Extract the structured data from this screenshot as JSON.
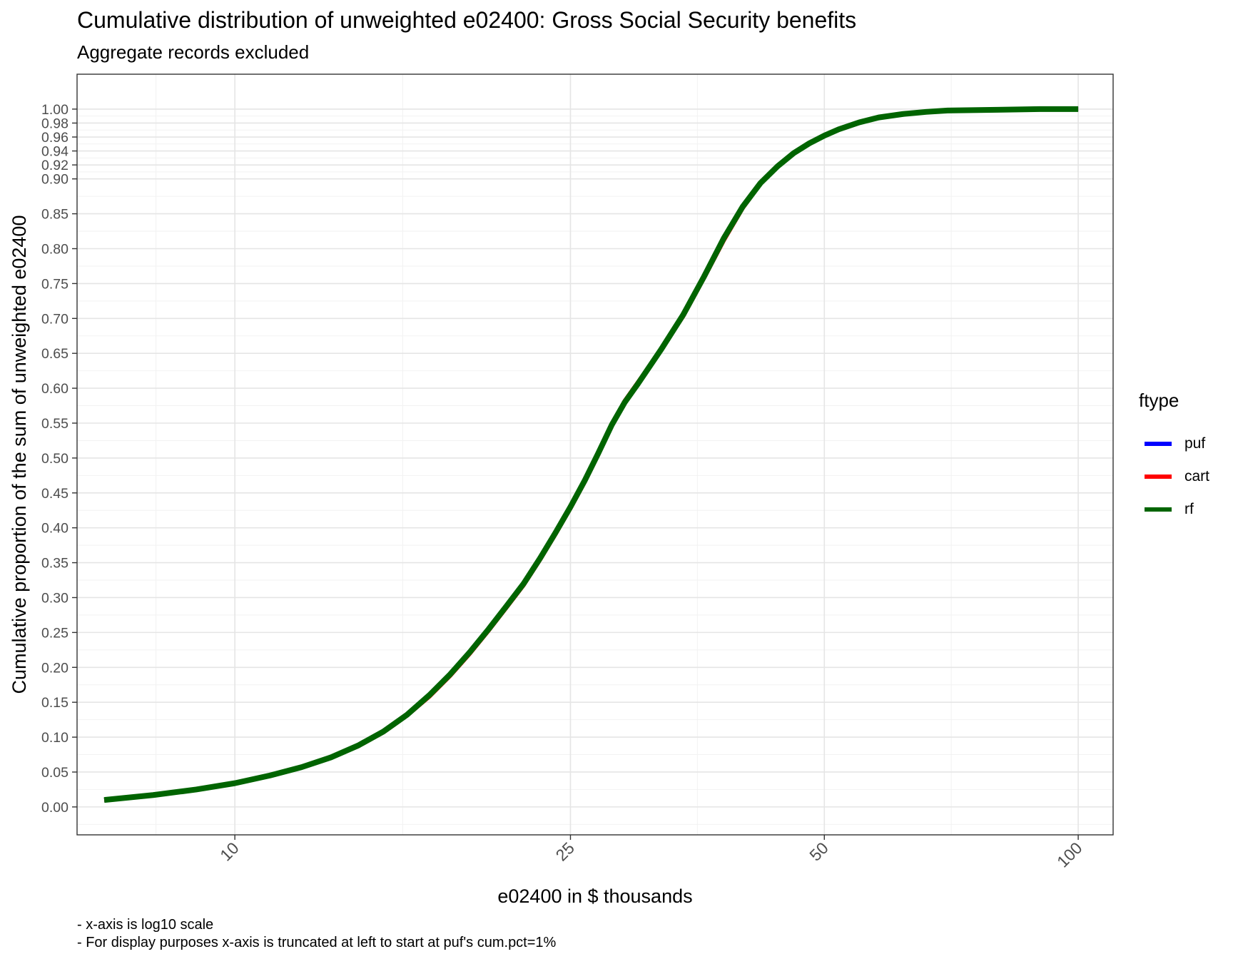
{
  "chart_data": {
    "type": "line",
    "title": "Cumulative distribution of unweighted e02400: Gross Social Security benefits",
    "subtitle": "Aggregate records excluded",
    "xlabel": "e02400 in $ thousands",
    "ylabel": "Cumulative proportion of the sum of unweighted e02400",
    "x_scale": "log10",
    "xlim": [
      6.5,
      110
    ],
    "ylim": [
      -0.04,
      1.05
    ],
    "x_ticks": [
      10,
      25,
      50,
      100
    ],
    "x_tick_labels": [
      "10",
      "25",
      "50",
      "100"
    ],
    "y_ticks": [
      0.0,
      0.05,
      0.1,
      0.15,
      0.2,
      0.25,
      0.3,
      0.35,
      0.4,
      0.45,
      0.5,
      0.55,
      0.6,
      0.65,
      0.7,
      0.75,
      0.8,
      0.85,
      0.9,
      0.92,
      0.94,
      0.96,
      0.98,
      1.0
    ],
    "y_tick_labels": [
      "0.00",
      "0.05",
      "0.10",
      "0.15",
      "0.20",
      "0.25",
      "0.30",
      "0.35",
      "0.40",
      "0.45",
      "0.50",
      "0.55",
      "0.60",
      "0.65",
      "0.70",
      "0.75",
      "0.80",
      "0.85",
      "0.90",
      "0.92",
      "0.94",
      "0.96",
      "0.98",
      "1.00"
    ],
    "grid": true,
    "legend_title": "ftype",
    "legend_position": "right",
    "series": [
      {
        "name": "puf",
        "color": "#0000ff",
        "x": [
          7.0,
          8.0,
          9.0,
          10.0,
          11.0,
          12.0,
          13.0,
          14.0,
          15.0,
          16.0,
          17.0,
          18.0,
          19.0,
          20.0,
          21.0,
          22.0,
          23.0,
          24.0,
          25.0,
          26.0,
          27.0,
          28.0,
          29.0,
          30.0,
          32.0,
          34.0,
          36.0,
          38.0,
          40.0,
          42.0,
          44.0,
          46.0,
          48.0,
          50.0,
          52.0,
          55.0,
          58.0,
          62.0,
          66.0,
          70.0,
          80.0,
          90.0,
          100.0
        ],
        "y": [
          0.01,
          0.017,
          0.025,
          0.034,
          0.045,
          0.057,
          0.071,
          0.088,
          0.108,
          0.132,
          0.16,
          0.19,
          0.222,
          0.255,
          0.288,
          0.32,
          0.356,
          0.393,
          0.43,
          0.468,
          0.508,
          0.548,
          0.58,
          0.605,
          0.655,
          0.705,
          0.76,
          0.815,
          0.86,
          0.894,
          0.918,
          0.937,
          0.951,
          0.962,
          0.971,
          0.981,
          0.988,
          0.993,
          0.996,
          0.998,
          0.999,
          1.0,
          1.0
        ]
      },
      {
        "name": "cart",
        "color": "#ff0000",
        "x": [
          7.0,
          8.0,
          9.0,
          10.0,
          11.0,
          12.0,
          13.0,
          14.0,
          15.0,
          16.0,
          17.0,
          18.0,
          19.0,
          20.0,
          21.0,
          22.0,
          23.0,
          24.0,
          25.0,
          26.0,
          27.0,
          28.0,
          29.0,
          30.0,
          32.0,
          34.0,
          36.0,
          38.0,
          40.0,
          42.0,
          44.0,
          46.0,
          48.0,
          50.0,
          52.0,
          55.0,
          58.0,
          62.0,
          66.0,
          70.0,
          80.0,
          90.0,
          100.0
        ],
        "y": [
          0.01,
          0.017,
          0.025,
          0.034,
          0.045,
          0.057,
          0.071,
          0.087,
          0.107,
          0.131,
          0.158,
          0.188,
          0.22,
          0.253,
          0.286,
          0.318,
          0.354,
          0.391,
          0.428,
          0.466,
          0.506,
          0.548,
          0.582,
          0.607,
          0.655,
          0.703,
          0.758,
          0.812,
          0.858,
          0.893,
          0.918,
          0.937,
          0.951,
          0.962,
          0.971,
          0.981,
          0.988,
          0.993,
          0.996,
          0.998,
          0.999,
          1.0,
          1.0
        ]
      },
      {
        "name": "rf",
        "color": "#006400",
        "x": [
          7.0,
          8.0,
          9.0,
          10.0,
          11.0,
          12.0,
          13.0,
          14.0,
          15.0,
          16.0,
          17.0,
          18.0,
          19.0,
          20.0,
          21.0,
          22.0,
          23.0,
          24.0,
          25.0,
          26.0,
          27.0,
          28.0,
          29.0,
          30.0,
          32.0,
          34.0,
          36.0,
          38.0,
          40.0,
          42.0,
          44.0,
          46.0,
          48.0,
          50.0,
          52.0,
          55.0,
          58.0,
          62.0,
          66.0,
          70.0,
          80.0,
          90.0,
          100.0
        ],
        "y": [
          0.01,
          0.017,
          0.025,
          0.034,
          0.045,
          0.057,
          0.071,
          0.088,
          0.108,
          0.132,
          0.16,
          0.19,
          0.222,
          0.255,
          0.288,
          0.32,
          0.356,
          0.393,
          0.43,
          0.468,
          0.508,
          0.548,
          0.58,
          0.605,
          0.655,
          0.705,
          0.76,
          0.815,
          0.86,
          0.894,
          0.918,
          0.937,
          0.951,
          0.962,
          0.971,
          0.981,
          0.988,
          0.993,
          0.996,
          0.998,
          0.999,
          1.0,
          1.0
        ]
      }
    ],
    "caption": [
      "- x-axis is log10 scale",
      "- For display purposes x-axis is truncated at left to start at puf's cum.pct=1%"
    ]
  }
}
